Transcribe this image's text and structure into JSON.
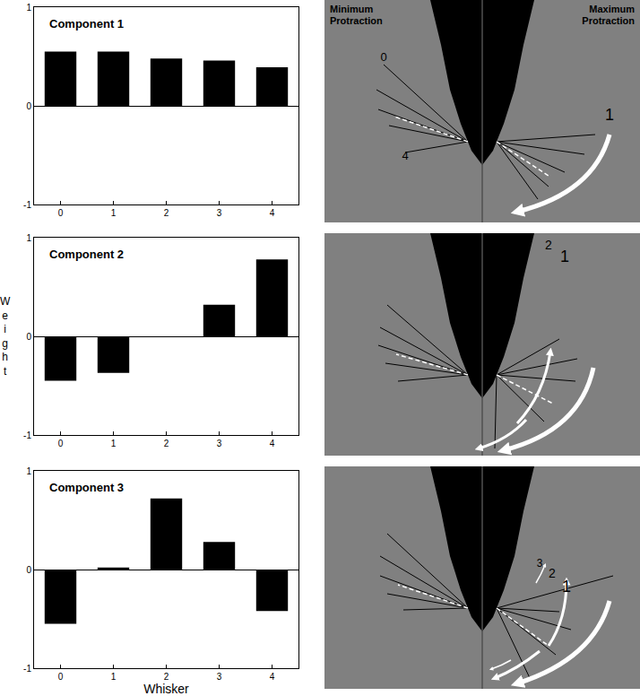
{
  "chart_data": [
    {
      "type": "bar",
      "title": "Component 1",
      "categories": [
        "0",
        "1",
        "2",
        "3",
        "4"
      ],
      "values": [
        0.55,
        0.55,
        0.48,
        0.46,
        0.39
      ],
      "color": "#000000",
      "ylim": [
        -1,
        1
      ],
      "yticks": [
        -1,
        0,
        1
      ],
      "grid": false
    },
    {
      "type": "bar",
      "title": "Component 2",
      "ylabel": "Weight",
      "categories": [
        "0",
        "1",
        "2",
        "3",
        "4"
      ],
      "values": [
        -0.45,
        -0.37,
        0,
        0.32,
        0.78
      ],
      "color": "#000000",
      "ylim": [
        -1,
        1
      ],
      "yticks": [
        -1,
        0,
        1
      ],
      "grid": false
    },
    {
      "type": "bar",
      "title": "Component 3",
      "xlabel": "Whisker",
      "categories": [
        "0",
        "1",
        "2",
        "3",
        "4"
      ],
      "values": [
        -0.55,
        0.02,
        0.72,
        0.28,
        -0.42
      ],
      "color": "#000000",
      "ylim": [
        -1,
        1
      ],
      "yticks": [
        -1,
        0,
        1
      ],
      "grid": false
    }
  ],
  "diagrams": [
    {
      "left_label": "Minimum Protraction",
      "right_label": "Maximum Protraction",
      "whisker_labels": [
        "0",
        "4"
      ],
      "arrow_labels": [
        "1"
      ]
    },
    {
      "arrow_labels": [
        "2",
        "1"
      ]
    },
    {
      "arrow_labels": [
        "3",
        "2",
        "1"
      ]
    }
  ]
}
